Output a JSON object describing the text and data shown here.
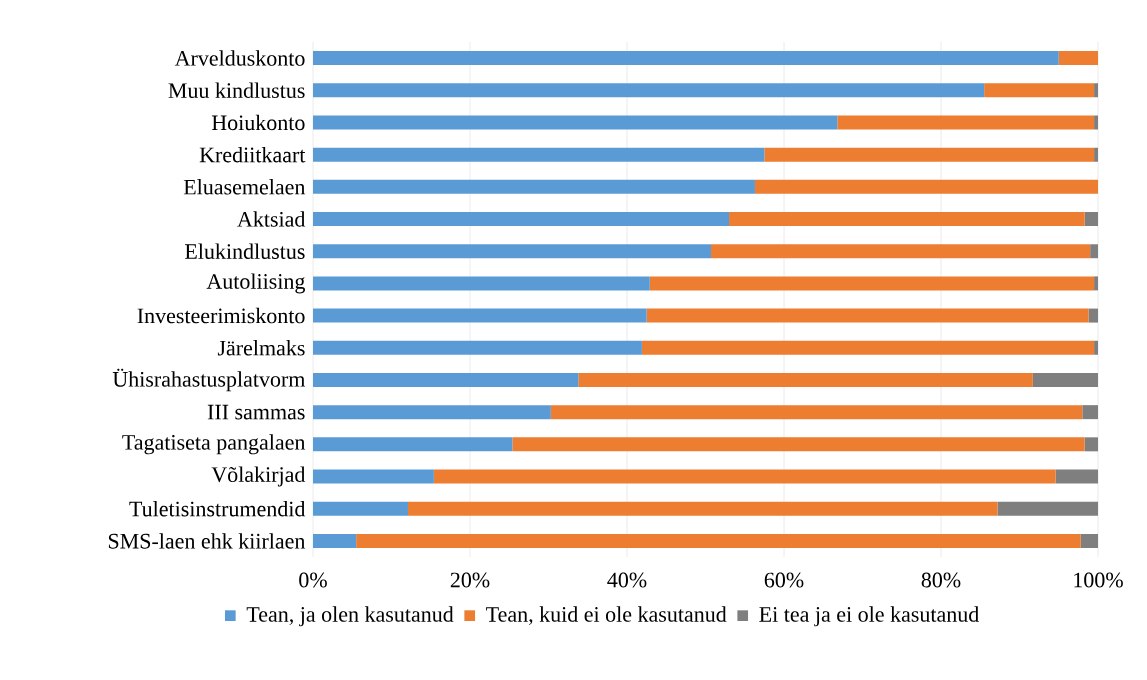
{
  "chart_data": {
    "type": "bar",
    "orientation": "horizontal",
    "stacked": true,
    "categories": [
      "Arvelduskonto",
      "Muu kindlustus",
      "Hoiukonto",
      "Krediitkaart",
      "Eluasemelaen",
      "Aktsiad",
      "Elukindlustus",
      "Autoliising",
      "Investeerimiskonto",
      "Järelmaks",
      "Ühisrahastusplatvorm",
      "III sammas",
      "Tagatiseta pangalaen",
      "Võlakirjad",
      "Tuletisinstrumendid",
      "SMS-laen ehk kiirlaen"
    ],
    "series": [
      {
        "name": "Tean, ja olen kasutanud",
        "color": "#5b9bd5",
        "values": [
          95.0,
          85.5,
          66.8,
          57.5,
          56.3,
          53.0,
          50.7,
          42.9,
          42.5,
          41.9,
          33.8,
          30.3,
          25.4,
          15.4,
          12.1,
          5.5
        ]
      },
      {
        "name": "Tean, kuid ei ole kasutanud",
        "color": "#ed7d31",
        "values": [
          5.0,
          14.0,
          32.7,
          42.0,
          43.7,
          45.3,
          48.3,
          56.6,
          56.3,
          57.6,
          57.9,
          67.7,
          72.9,
          79.2,
          75.1,
          92.3
        ]
      },
      {
        "name": "Ei tea ja ei ole kasutanud",
        "color": "#7f7f7f",
        "values": [
          0,
          0.5,
          0.5,
          0.5,
          0,
          1.7,
          1.0,
          0.5,
          1.2,
          0.5,
          8.3,
          2.0,
          1.7,
          5.4,
          12.8,
          2.2
        ]
      }
    ],
    "xlim": [
      0,
      100
    ],
    "xticks": [
      {
        "value": 0,
        "label": "0%"
      },
      {
        "value": 20,
        "label": "20%"
      },
      {
        "value": 40,
        "label": "40%"
      },
      {
        "value": 60,
        "label": "60%"
      },
      {
        "value": 80,
        "label": "80%"
      },
      {
        "value": 100,
        "label": "100%"
      }
    ],
    "grid": "x",
    "legend": "bottom"
  }
}
